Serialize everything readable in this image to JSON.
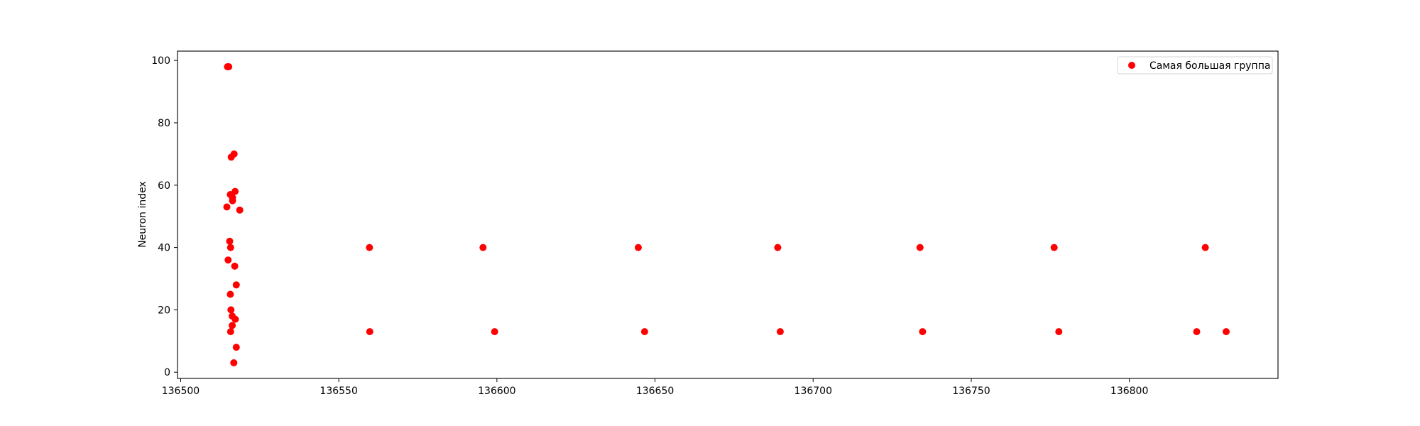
{
  "chart_data": {
    "type": "scatter",
    "title": "",
    "xlabel": "",
    "ylabel": "Neuron index",
    "xlim": [
      136499,
      136847
    ],
    "ylim": [
      -2,
      103
    ],
    "xticks": [
      136500,
      136550,
      136600,
      136650,
      136700,
      136750,
      136800
    ],
    "yticks": [
      0,
      20,
      40,
      60,
      80,
      100
    ],
    "xtick_labels": [
      "136500",
      "136550",
      "136600",
      "136650",
      "136700",
      "136750",
      "136800"
    ],
    "ytick_labels": [
      "0",
      "20",
      "40",
      "60",
      "80",
      "100"
    ],
    "grid": false,
    "legend_position": "top-right",
    "series": [
      {
        "name": "Самая большая группа",
        "color": "#ff0000",
        "x": [
          136515.2,
          136514.8,
          136516.0,
          136516.9,
          136515.7,
          136517.2,
          136516.4,
          136516.4,
          136514.6,
          136518.7,
          136515.5,
          136515.8,
          136515.0,
          136517.1,
          136517.6,
          136515.7,
          136515.9,
          136517.3,
          136516.3,
          136516.3,
          136515.8,
          136517.6,
          136516.8,
          136559.7,
          136595.6,
          136644.7,
          136688.8,
          136733.8,
          136776.2,
          136824.0,
          136559.8,
          136599.3,
          136646.7,
          136689.6,
          136734.6,
          136777.7,
          136821.3,
          136830.6
        ],
        "y": [
          98,
          98,
          69,
          70,
          57,
          58,
          56,
          55,
          53,
          52,
          42,
          40,
          36,
          34,
          28,
          25,
          20,
          17,
          15,
          18,
          13,
          8,
          3,
          40,
          40,
          40,
          40,
          40,
          40,
          40,
          13,
          13,
          13,
          13,
          13,
          13,
          13,
          13
        ]
      }
    ]
  }
}
